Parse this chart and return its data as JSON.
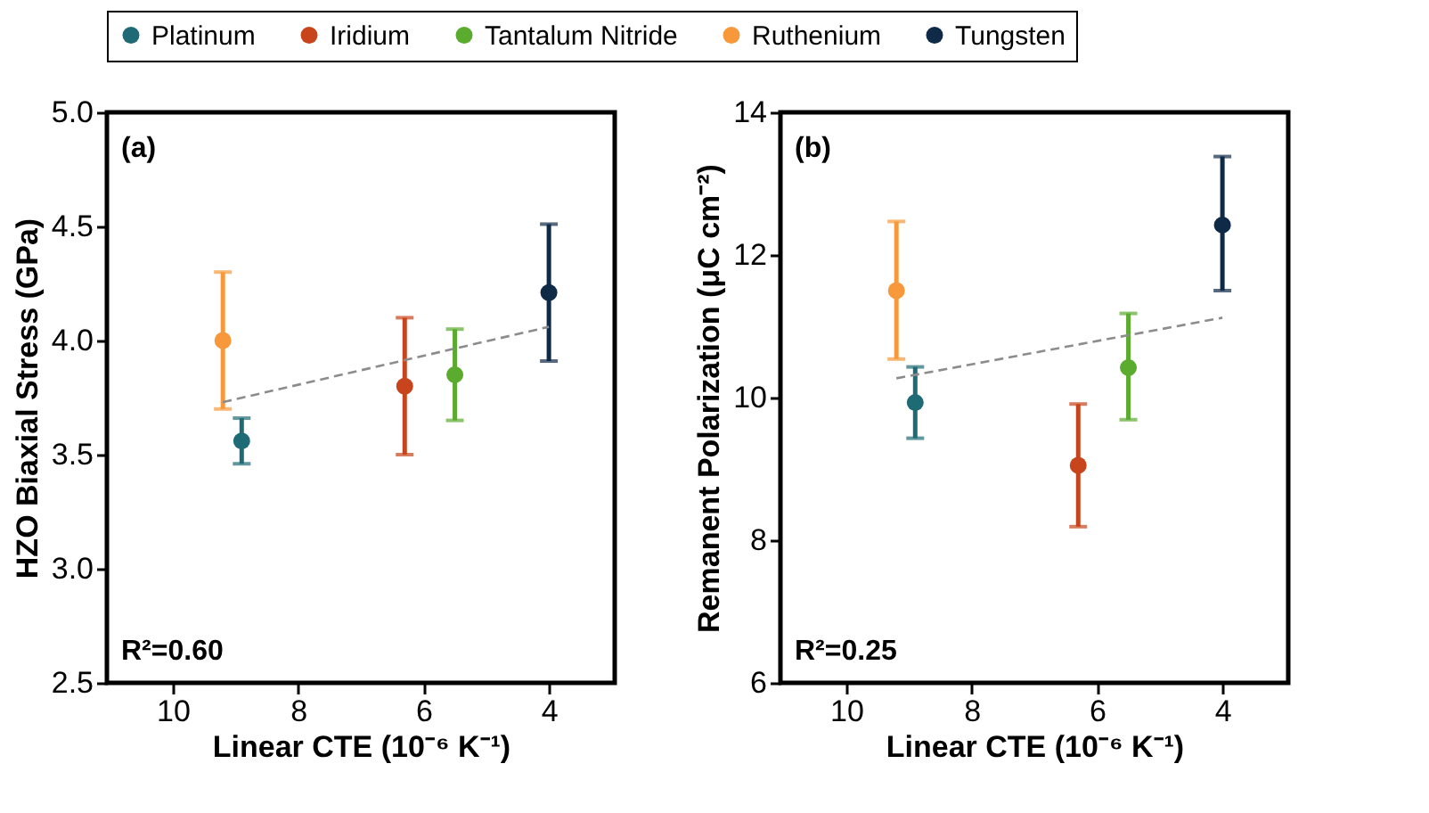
{
  "chart_data": [
    {
      "type": "scatter",
      "xlabel": "Linear CTE (10⁻⁶ K⁻¹)",
      "ylabel": "HZO Biaxial Stress (GPa)",
      "xlim": [
        11.05,
        2.95
      ],
      "xticks": [
        10,
        8,
        6,
        4
      ],
      "ylim": [
        2.5,
        5.0
      ],
      "yticks": [
        {
          "value": 2.5,
          "label": "2.5"
        },
        {
          "value": 3,
          "label": "3.0"
        },
        {
          "value": 3.5,
          "label": "3.5"
        },
        {
          "value": 4,
          "label": "4.0"
        },
        {
          "value": 4.5,
          "label": "4.5"
        },
        {
          "value": 5,
          "label": "5.0"
        }
      ],
      "grid": false,
      "legend": "top",
      "marker": "circle",
      "annotations": [
        "(a)",
        "R²=0.60"
      ],
      "series": [
        {
          "name": "Platinum",
          "color": "#1f6b75",
          "x": [
            8.9
          ],
          "values": [
            3.56
          ],
          "errors": [
            [
              3.46,
              3.66
            ]
          ]
        },
        {
          "name": "Iridium",
          "color": "#c8441c",
          "x": [
            6.3
          ],
          "values": [
            3.8
          ],
          "errors": [
            [
              3.5,
              4.1
            ]
          ]
        },
        {
          "name": "Tantalum Nitride",
          "color": "#5aab2e",
          "x": [
            5.5
          ],
          "values": [
            3.85
          ],
          "errors": [
            [
              3.65,
              4.05
            ]
          ]
        },
        {
          "name": "Ruthenium",
          "color": "#f7993a",
          "x": [
            9.2
          ],
          "values": [
            4.0
          ],
          "errors": [
            [
              3.7,
              4.3
            ]
          ]
        },
        {
          "name": "Tungsten",
          "color": "#0f2a47",
          "x": [
            4.0
          ],
          "values": [
            4.21
          ],
          "errors": [
            [
              3.91,
              4.51
            ]
          ]
        },
        {
          "type": "line",
          "color": "#8c8c8c",
          "line_style": "dashed",
          "x": [
            9.2,
            4.0
          ],
          "values": [
            3.73,
            4.06
          ],
          "marker": "none"
        }
      ]
    },
    {
      "type": "scatter",
      "xlabel": "Linear CTE (10⁻⁶ K⁻¹)",
      "ylabel": "Remanent Polarization (μC cm⁻²)",
      "xlim": [
        11.05,
        2.95
      ],
      "xticks": [
        10,
        8,
        6,
        4
      ],
      "ylim": [
        6,
        14
      ],
      "yticks": [
        6,
        8,
        10,
        12,
        14
      ],
      "grid": false,
      "legend": "top",
      "marker": "circle",
      "annotations": [
        "(b)",
        "R²=0.25"
      ],
      "series": [
        {
          "name": "Platinum",
          "color": "#1f6b75",
          "x": [
            8.9
          ],
          "values": [
            9.93
          ],
          "errors": [
            [
              9.43,
              10.43
            ]
          ]
        },
        {
          "name": "Iridium",
          "color": "#c8441c",
          "x": [
            6.3
          ],
          "values": [
            9.05
          ],
          "errors": [
            [
              8.19,
              9.91
            ]
          ]
        },
        {
          "name": "Tantalum Nitride",
          "color": "#5aab2e",
          "x": [
            5.5
          ],
          "values": [
            10.42
          ],
          "errors": [
            [
              9.69,
              11.18
            ]
          ]
        },
        {
          "name": "Ruthenium",
          "color": "#f7993a",
          "x": [
            9.2
          ],
          "values": [
            11.5
          ],
          "errors": [
            [
              10.54,
              12.47
            ]
          ]
        },
        {
          "name": "Tungsten",
          "color": "#0f2a47",
          "x": [
            4.0
          ],
          "values": [
            12.42
          ],
          "errors": [
            [
              11.5,
              13.38
            ]
          ]
        },
        {
          "type": "line",
          "color": "#8c8c8c",
          "line_style": "dashed",
          "x": [
            9.2,
            4.0
          ],
          "values": [
            10.27,
            11.12
          ],
          "marker": "none"
        }
      ]
    }
  ]
}
